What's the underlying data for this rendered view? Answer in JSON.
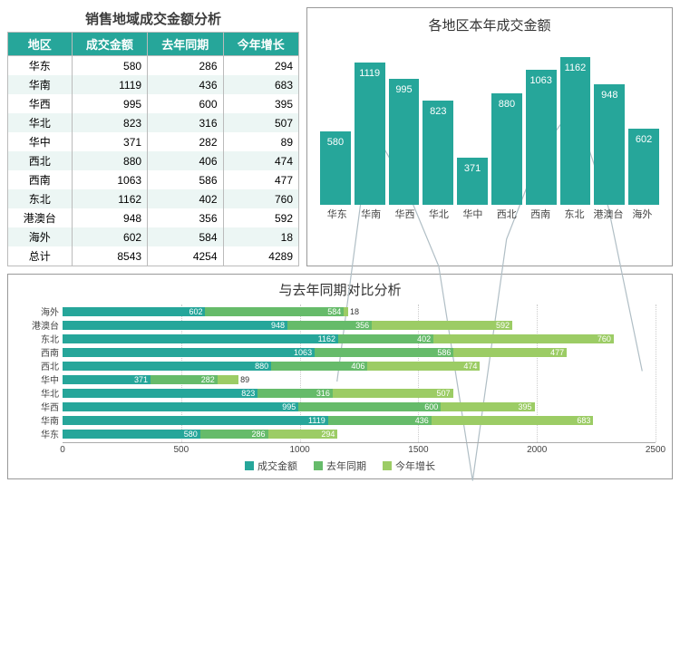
{
  "colors": {
    "primary": "#26a69a",
    "green1": "#66bb6a",
    "green2": "#9ccc65",
    "line": "#b0bec5",
    "row_even": "#ecf6f4",
    "row_odd": "#ffffff",
    "border": "#999999"
  },
  "table": {
    "title": "销售地域成交金额分析",
    "columns": [
      "地区",
      "成交金额",
      "去年同期",
      "今年增长"
    ],
    "col_widths": [
      "22%",
      "26%",
      "26%",
      "26%"
    ],
    "rows": [
      [
        "华东",
        580,
        286,
        294
      ],
      [
        "华南",
        1119,
        436,
        683
      ],
      [
        "华西",
        995,
        600,
        395
      ],
      [
        "华北",
        823,
        316,
        507
      ],
      [
        "华中",
        371,
        282,
        89
      ],
      [
        "西北",
        880,
        406,
        474
      ],
      [
        "西南",
        1063,
        586,
        477
      ],
      [
        "东北",
        1162,
        402,
        760
      ],
      [
        "港澳台",
        948,
        356,
        592
      ],
      [
        "海外",
        602,
        584,
        18
      ],
      [
        "总计",
        8543,
        4254,
        4289
      ]
    ]
  },
  "bar_chart": {
    "title": "各地区本年成交金额",
    "type": "bar",
    "categories": [
      "华东",
      "华南",
      "华西",
      "华北",
      "华中",
      "西北",
      "西南",
      "东北",
      "港澳台",
      "海外"
    ],
    "values": [
      580,
      1119,
      995,
      823,
      371,
      880,
      1063,
      1162,
      948,
      602
    ],
    "bar_color": "#26a69a",
    "value_color": "#ffffff",
    "ymax": 1300,
    "line_color": "#b0bec5",
    "show_line": true
  },
  "hbar_chart": {
    "title": "与去年同期对比分析",
    "type": "stacked_horizontal_bar",
    "categories": [
      "海外",
      "港澳台",
      "东北",
      "西南",
      "西北",
      "华中",
      "华北",
      "华西",
      "华南",
      "华东"
    ],
    "series": [
      {
        "name": "成交金额",
        "color": "#26a69a",
        "values": [
          602,
          948,
          1162,
          1063,
          880,
          371,
          823,
          995,
          1119,
          580
        ]
      },
      {
        "name": "去年同期",
        "color": "#66bb6a",
        "values": [
          584,
          356,
          402,
          586,
          406,
          282,
          316,
          600,
          436,
          286
        ]
      },
      {
        "name": "今年增长",
        "color": "#9ccc65",
        "values": [
          18,
          592,
          760,
          477,
          474,
          89,
          507,
          395,
          683,
          294
        ]
      }
    ],
    "xmax": 2500,
    "xticks": [
      0,
      500,
      1000,
      1500,
      2000,
      2500
    ]
  },
  "legend": {
    "items": [
      {
        "label": "成交金额",
        "color": "#26a69a"
      },
      {
        "label": "去年同期",
        "color": "#66bb6a"
      },
      {
        "label": "今年增长",
        "color": "#9ccc65"
      }
    ]
  }
}
